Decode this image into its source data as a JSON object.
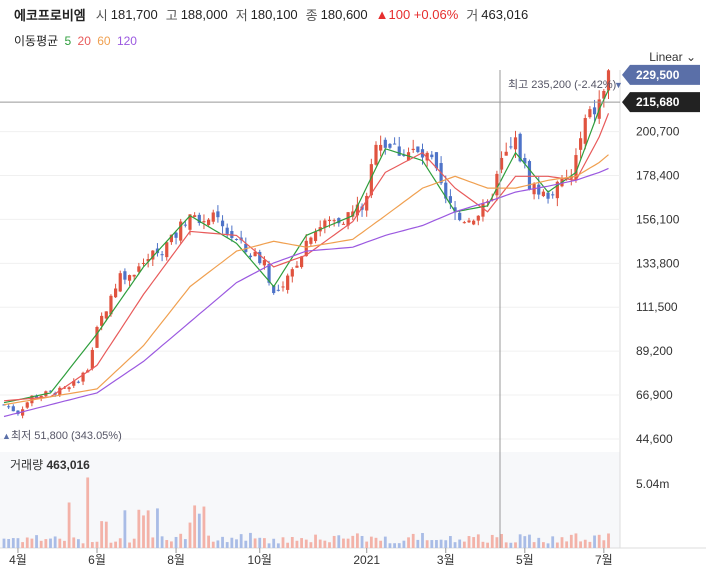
{
  "header": {
    "name": "에코프로비엠",
    "open_label": "시",
    "open": "181,700",
    "high_label": "고",
    "high": "188,000",
    "low_label": "저",
    "low": "180,100",
    "close_label": "종",
    "close": "180,600",
    "change": "▲100 +0.06%",
    "volume_label": "거",
    "volume": "463,016"
  },
  "ma_legend": {
    "label": "이동평균",
    "items": [
      {
        "text": "5",
        "color": "#2e9e3c"
      },
      {
        "text": "20",
        "color": "#e85a5a"
      },
      {
        "text": "60",
        "color": "#f0a050"
      },
      {
        "text": "120",
        "color": "#9b59e0"
      }
    ]
  },
  "scale_select": {
    "value": "Linear",
    "icon": "chevron-down-icon"
  },
  "annotations": {
    "max": "최고 235,200 (-2.42%)",
    "min": "최저 51,800 (343.05%)"
  },
  "price_tags": {
    "current": "229,500",
    "current_color": "#5a6fa8",
    "crosshair": "215,680",
    "crosshair_color": "#222222"
  },
  "volume_panel": {
    "label": "거래량",
    "value": "463,016",
    "tick": "5.04m"
  },
  "chart_data": {
    "type": "candlestick",
    "scale": "linear",
    "y_ticks": [
      "200,700",
      "178,400",
      "156,100",
      "133,800",
      "111,500",
      "89,200",
      "66,900",
      "44,600"
    ],
    "y_tick_values": [
      200700,
      178400,
      156100,
      133800,
      111500,
      89200,
      66900,
      44600
    ],
    "ylim": [
      40000,
      232000
    ],
    "x_ticks": [
      "4월",
      "6월",
      "8월",
      "10월",
      "2021",
      "3월",
      "5월",
      "7월"
    ],
    "price_path": [
      [
        0,
        62000
      ],
      [
        3,
        58000
      ],
      [
        6,
        66000
      ],
      [
        10,
        68000
      ],
      [
        14,
        70000
      ],
      [
        18,
        80000
      ],
      [
        20,
        100000
      ],
      [
        22,
        112000
      ],
      [
        25,
        128000
      ],
      [
        28,
        130000
      ],
      [
        32,
        138000
      ],
      [
        36,
        145000
      ],
      [
        40,
        160000
      ],
      [
        42,
        158000
      ],
      [
        45,
        156000
      ],
      [
        48,
        150000
      ],
      [
        52,
        140000
      ],
      [
        56,
        135000
      ],
      [
        58,
        118000
      ],
      [
        60,
        120000
      ],
      [
        62,
        130000
      ],
      [
        66,
        150000
      ],
      [
        70,
        155000
      ],
      [
        74,
        158000
      ],
      [
        78,
        165000
      ],
      [
        80,
        198000
      ],
      [
        84,
        192000
      ],
      [
        88,
        190000
      ],
      [
        92,
        185000
      ],
      [
        95,
        165000
      ],
      [
        98,
        156000
      ],
      [
        101,
        158000
      ],
      [
        104,
        162000
      ],
      [
        107,
        185000
      ],
      [
        110,
        195000
      ],
      [
        113,
        175000
      ],
      [
        116,
        168000
      ],
      [
        119,
        172000
      ],
      [
        122,
        178000
      ],
      [
        125,
        205000
      ],
      [
        128,
        215000
      ],
      [
        130,
        229500
      ]
    ],
    "ma_series": [
      {
        "window": "5",
        "color": "#2e9e3c",
        "values": [
          [
            0,
            63000
          ],
          [
            10,
            68000
          ],
          [
            20,
            98000
          ],
          [
            30,
            132000
          ],
          [
            40,
            158000
          ],
          [
            50,
            144000
          ],
          [
            58,
            122000
          ],
          [
            65,
            148000
          ],
          [
            75,
            158000
          ],
          [
            82,
            192000
          ],
          [
            90,
            186000
          ],
          [
            97,
            160000
          ],
          [
            104,
            163000
          ],
          [
            110,
            190000
          ],
          [
            117,
            170000
          ],
          [
            123,
            180000
          ],
          [
            128,
            212000
          ],
          [
            130,
            222000
          ]
        ]
      },
      {
        "window": "20",
        "color": "#e85a5a",
        "values": [
          [
            0,
            64000
          ],
          [
            10,
            66000
          ],
          [
            20,
            82000
          ],
          [
            30,
            118000
          ],
          [
            40,
            150000
          ],
          [
            50,
            148000
          ],
          [
            58,
            132000
          ],
          [
            65,
            138000
          ],
          [
            75,
            155000
          ],
          [
            82,
            180000
          ],
          [
            90,
            190000
          ],
          [
            97,
            172000
          ],
          [
            104,
            160000
          ],
          [
            110,
            178000
          ],
          [
            117,
            178000
          ],
          [
            123,
            176000
          ],
          [
            128,
            198000
          ],
          [
            130,
            210000
          ]
        ]
      },
      {
        "window": "60",
        "color": "#f0a050",
        "values": [
          [
            0,
            62000
          ],
          [
            10,
            66000
          ],
          [
            20,
            70000
          ],
          [
            30,
            92000
          ],
          [
            40,
            122000
          ],
          [
            50,
            140000
          ],
          [
            58,
            145000
          ],
          [
            65,
            142000
          ],
          [
            75,
            146000
          ],
          [
            82,
            158000
          ],
          [
            90,
            172000
          ],
          [
            97,
            178000
          ],
          [
            104,
            172000
          ],
          [
            110,
            172000
          ],
          [
            117,
            176000
          ],
          [
            123,
            178000
          ],
          [
            128,
            185000
          ],
          [
            130,
            189000
          ]
        ]
      },
      {
        "window": "120",
        "color": "#9b59e0",
        "values": [
          [
            0,
            56000
          ],
          [
            10,
            62000
          ],
          [
            20,
            68000
          ],
          [
            30,
            84000
          ],
          [
            40,
            104000
          ],
          [
            50,
            124000
          ],
          [
            58,
            134000
          ],
          [
            65,
            140000
          ],
          [
            75,
            142000
          ],
          [
            82,
            148000
          ],
          [
            90,
            153000
          ],
          [
            97,
            160000
          ],
          [
            104,
            165000
          ],
          [
            110,
            170000
          ],
          [
            117,
            173000
          ],
          [
            123,
            176000
          ],
          [
            128,
            180000
          ],
          [
            130,
            182000
          ]
        ]
      }
    ],
    "volume_ylim": [
      0,
      6000000
    ],
    "volume_tick_value": 5040000
  }
}
